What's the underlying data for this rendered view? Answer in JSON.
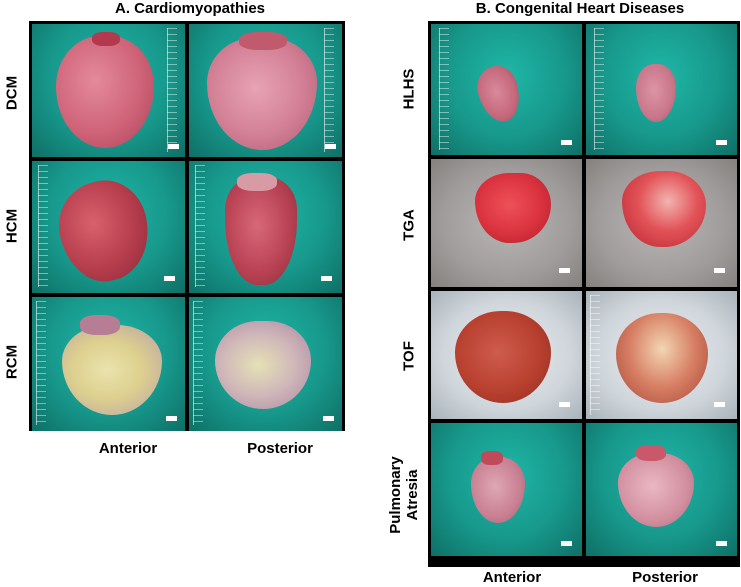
{
  "panels": {
    "a": {
      "title": "A. Cardiomyopathies",
      "rows": [
        {
          "label": "DCM"
        },
        {
          "label": "HCM"
        },
        {
          "label": "RCM"
        }
      ],
      "columns": [
        "Anterior",
        "Posterior"
      ]
    },
    "b": {
      "title": "B. Congenital Heart Diseases",
      "rows": [
        {
          "label": "HLHS"
        },
        {
          "label": "TGA"
        },
        {
          "label": "TOF"
        },
        {
          "label": "Pulmonary\nAtresia"
        }
      ],
      "columns": [
        "Anterior",
        "Posterior"
      ]
    }
  },
  "colors": {
    "teal_drape": "#17988b",
    "ice": "#cfd6db",
    "grey_drape": "#9f9c9b",
    "tissue_pink": "#c8546a",
    "tissue_red": "#d9323e",
    "tissue_yellow": "#e0d79a"
  }
}
